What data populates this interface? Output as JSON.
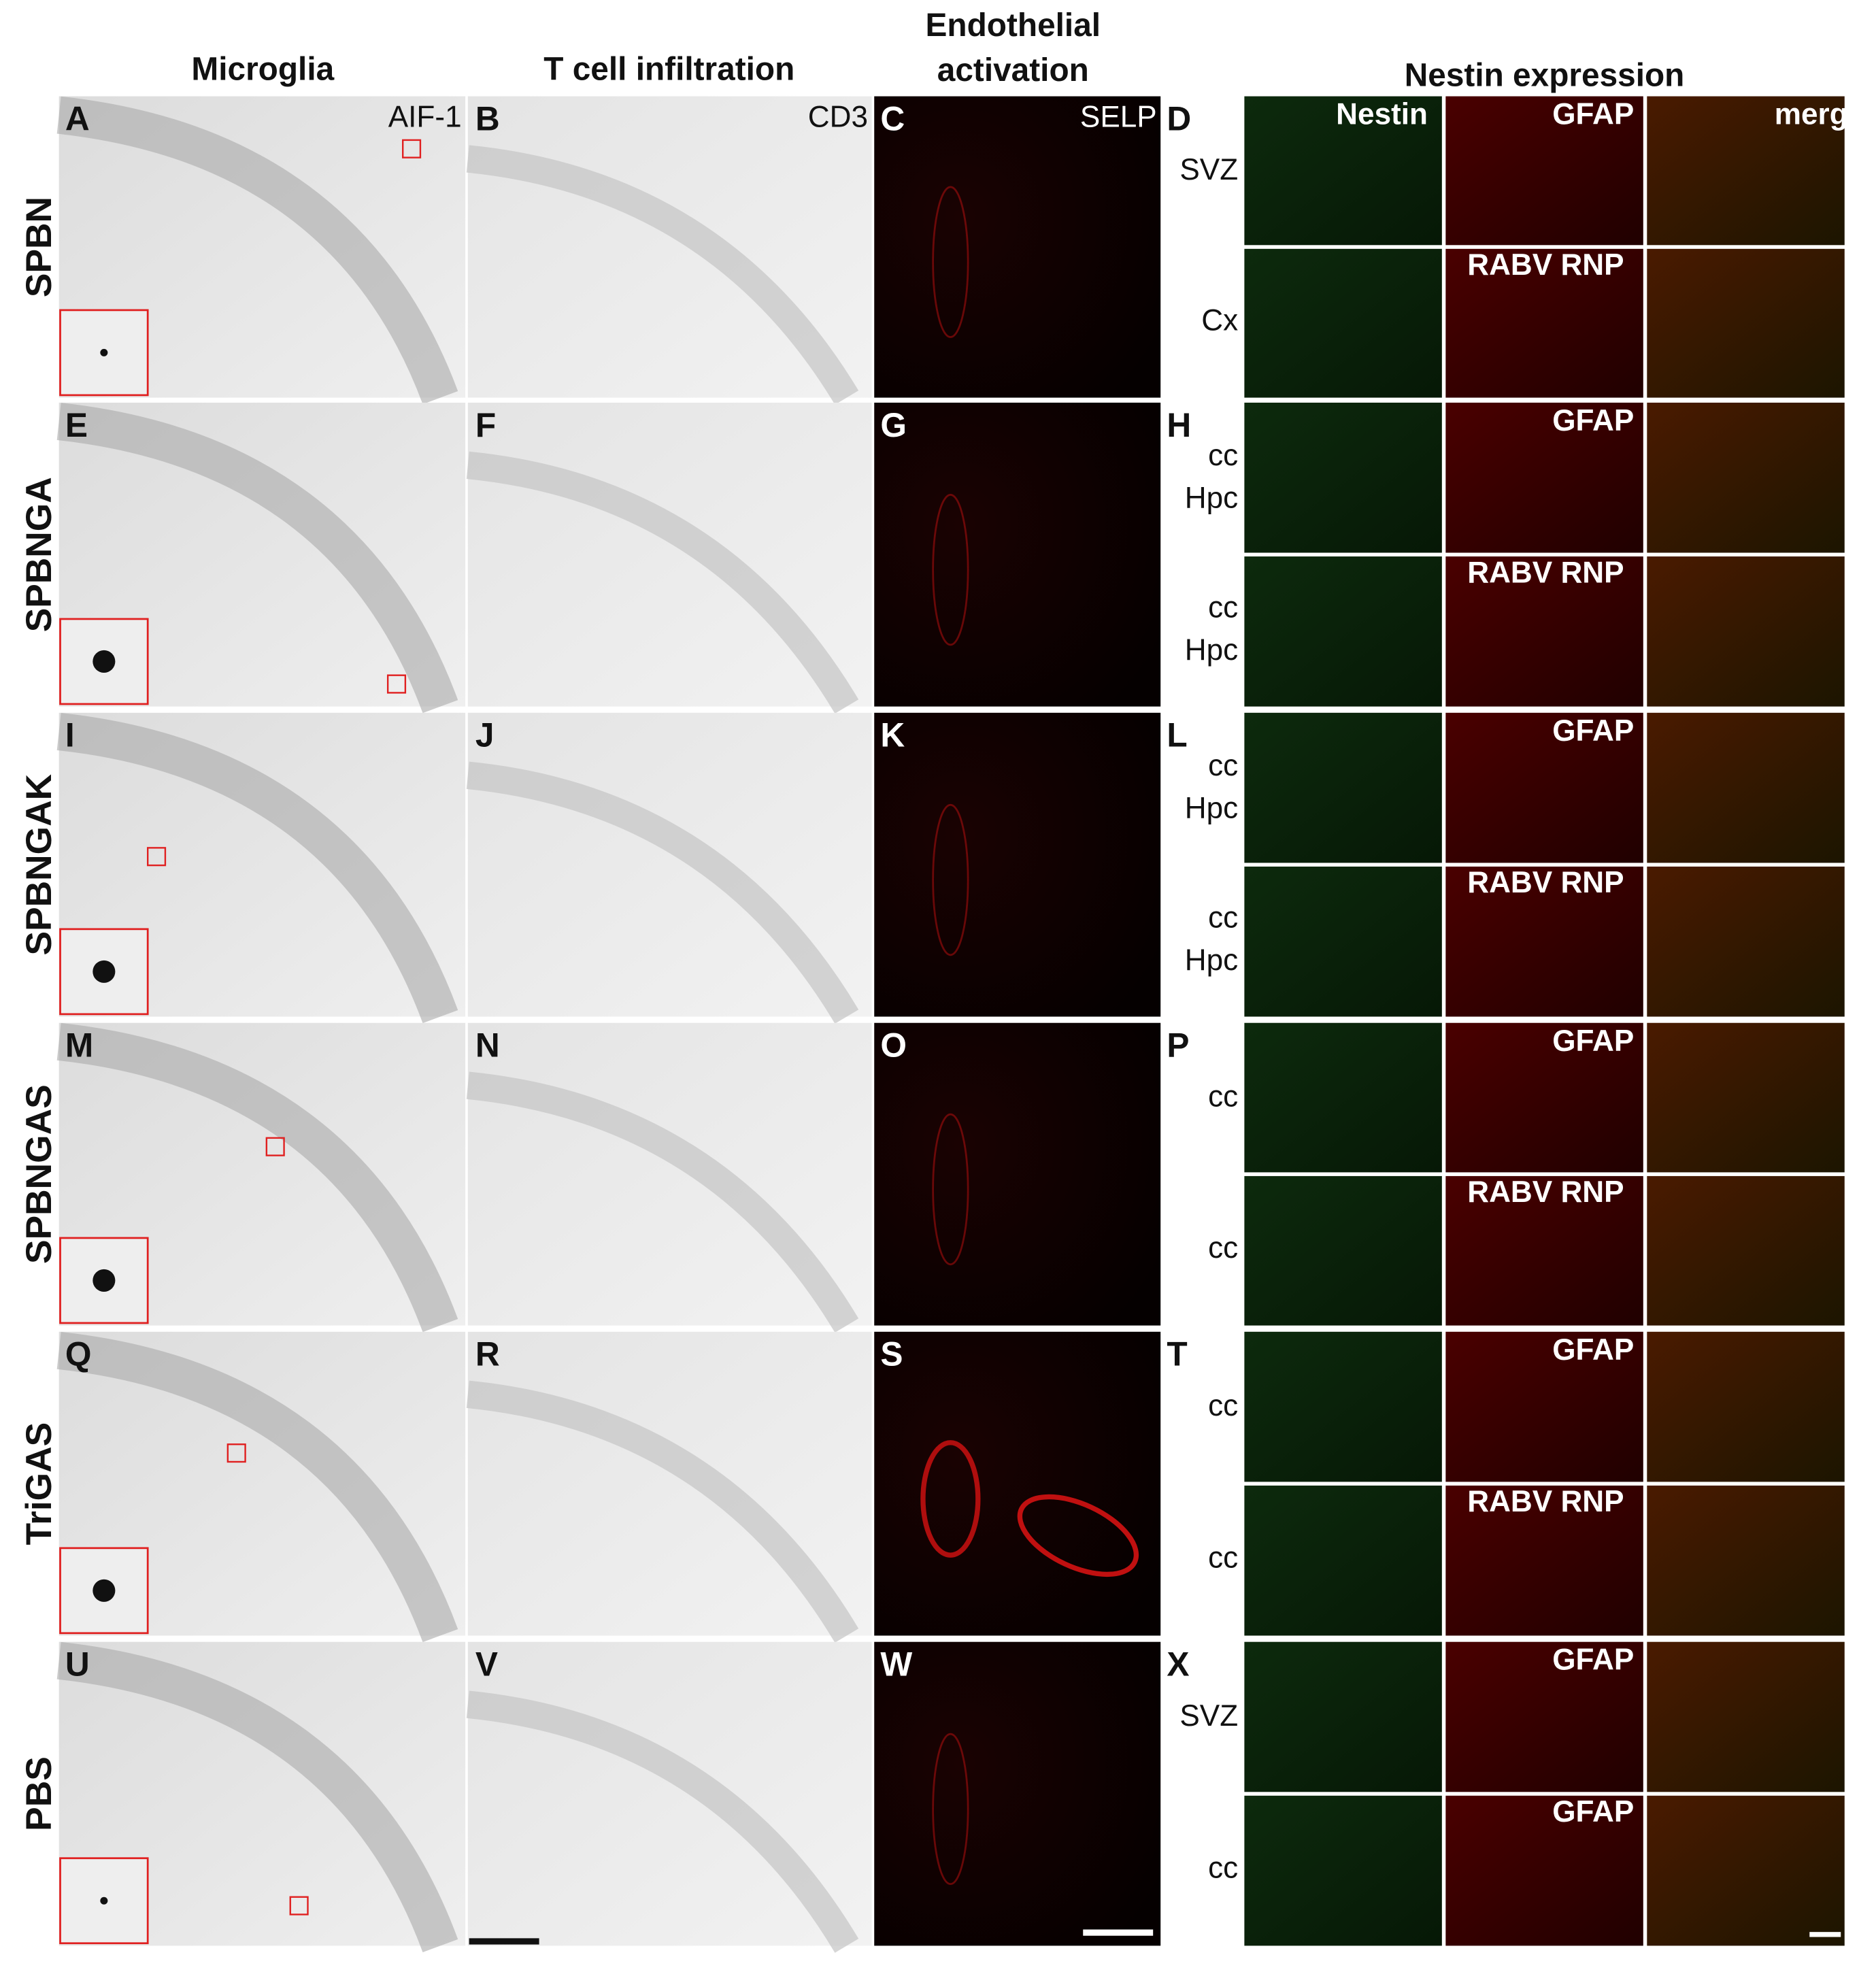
{
  "figure": {
    "column_headers": [
      {
        "lines": [
          "Microglia"
        ]
      },
      {
        "lines": [
          "T cell infiltration"
        ]
      },
      {
        "lines": [
          "Endothelial",
          "activation"
        ]
      },
      {
        "lines": [
          "Nestin expression"
        ]
      }
    ],
    "markers": [
      "AIF-1",
      "CD3",
      "SELP"
    ],
    "rows": [
      {
        "label": "SPBN",
        "panels": [
          "A",
          "B",
          "C",
          "D"
        ],
        "top_labels": [
          "Nestin",
          "GFAP",
          "merge"
        ],
        "bottom_labels": [
          "RABV RNP"
        ],
        "regions": [
          [
            "SVZ"
          ],
          [
            "Cx"
          ]
        ]
      },
      {
        "label": "SPBNGA",
        "panels": [
          "E",
          "F",
          "G",
          "H"
        ],
        "top_labels": [
          "GFAP"
        ],
        "bottom_labels": [
          "RABV RNP"
        ],
        "regions": [
          [
            "cc",
            "Hpc"
          ],
          [
            "cc",
            "Hpc"
          ]
        ]
      },
      {
        "label": "SPBNGAK",
        "panels": [
          "I",
          "J",
          "K",
          "L"
        ],
        "top_labels": [
          "GFAP"
        ],
        "bottom_labels": [
          "RABV RNP"
        ],
        "regions": [
          [
            "cc",
            "Hpc"
          ],
          [
            "cc",
            "Hpc"
          ]
        ]
      },
      {
        "label": "SPBNGAS",
        "panels": [
          "M",
          "N",
          "O",
          "P"
        ],
        "top_labels": [
          "GFAP"
        ],
        "bottom_labels": [
          "RABV RNP"
        ],
        "regions": [
          [
            "cc"
          ],
          [
            "cc"
          ]
        ]
      },
      {
        "label": "TriGAS",
        "panels": [
          "Q",
          "R",
          "S",
          "T"
        ],
        "top_labels": [
          "GFAP"
        ],
        "bottom_labels": [
          "RABV RNP"
        ],
        "regions": [
          [
            "cc"
          ],
          [
            "cc"
          ]
        ]
      },
      {
        "label": "PBS",
        "panels": [
          "U",
          "V",
          "W",
          "X"
        ],
        "top_labels": [
          "GFAP"
        ],
        "bottom_labels": [
          "GFAP"
        ],
        "regions": [
          [
            "SVZ"
          ],
          [
            "cc"
          ]
        ]
      }
    ]
  }
}
